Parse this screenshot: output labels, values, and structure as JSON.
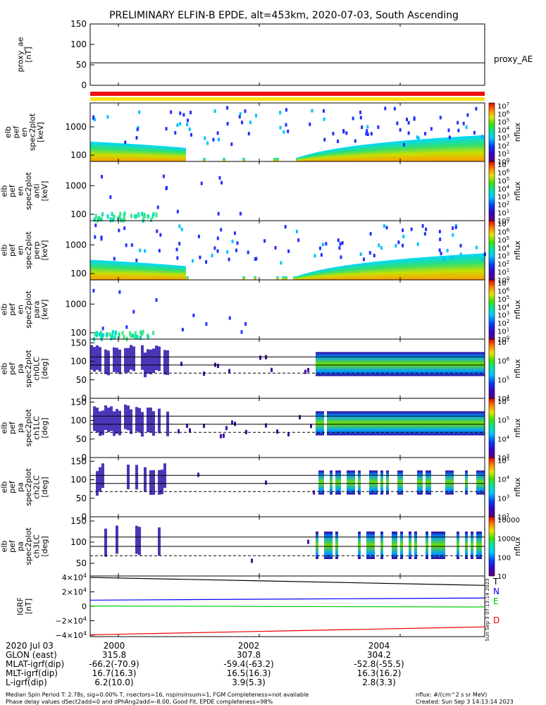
{
  "title": "PRELIMINARY ELFIN-B EPDE, alt=453km, 2020-07-03, South Ascending",
  "colors": {
    "ae_line": "#000000",
    "bar_red": "#ee1111",
    "bar_yellow": "#f5e11a",
    "grf_T": "#000000",
    "grf_N": "#0000ff",
    "grf_E": "#00cc00",
    "grf_D": "#ee0000",
    "dashed": "#000000"
  },
  "chart_data": [
    {
      "id": "proxy_ae",
      "type": "line",
      "ylabel": "proxy_ae\n[nT]",
      "yticks": [
        "150",
        "100",
        "50",
        "0"
      ],
      "ylim": [
        0,
        150
      ],
      "legend": "proxy_AE",
      "series": [
        {
          "name": "proxy_AE",
          "x": [
            1999.6,
            2005.2
          ],
          "values": [
            55,
            55
          ]
        }
      ]
    },
    {
      "id": "en_spec",
      "type": "heatmap",
      "ylabel": "elb\npef\nen\nspec2plot\n[keV]",
      "yticks": [
        "1000",
        "100"
      ],
      "ylim": [
        60,
        7000
      ],
      "yscale": "log",
      "colorbar": {
        "label": "nflux",
        "ticks": [
          "10^7",
          "10^6",
          "10^5",
          "10^4",
          "10^3",
          "10^2",
          "10^1",
          "10^0"
        ]
      }
    },
    {
      "id": "en_spec_anti",
      "type": "heatmap",
      "ylabel": "elb\npef\nen\nspec2plot\nanti\n[keV]",
      "yticks": [
        "1000",
        "100"
      ],
      "ylim": [
        60,
        7000
      ],
      "yscale": "log",
      "colorbar": {
        "label": "nflux",
        "ticks": [
          "10^7",
          "10^6",
          "10^5",
          "10^4",
          "10^3",
          "10^2",
          "10^1",
          "10^0"
        ]
      }
    },
    {
      "id": "en_spec_perp",
      "type": "heatmap",
      "ylabel": "elb\npef\nen\nspec2plot\nperp\n[keV]",
      "yticks": [
        "1000",
        "100"
      ],
      "ylim": [
        60,
        7000
      ],
      "yscale": "log",
      "colorbar": {
        "label": "nflux",
        "ticks": [
          "10^7",
          "10^6",
          "10^5",
          "10^4",
          "10^3",
          "10^2",
          "10^1",
          "10^0"
        ]
      }
    },
    {
      "id": "en_spec_para",
      "type": "heatmap",
      "ylabel": "elb\npef\nen\nspec2plot\npara\n[keV]",
      "yticks": [
        "1000",
        "100"
      ],
      "ylim": [
        60,
        7000
      ],
      "yscale": "log",
      "colorbar": {
        "label": "nflux",
        "ticks": [
          "10^7",
          "10^6",
          "10^5",
          "10^4",
          "10^3",
          "10^2",
          "10^1",
          "10^0"
        ]
      }
    },
    {
      "id": "ch0LC",
      "type": "heatmap",
      "ylabel": "elb\npef\npa\nspec2plot\nch0LC\n[deg]",
      "yticks": [
        "150",
        "100",
        "50",
        "0"
      ],
      "ylim": [
        0,
        160
      ],
      "colorbar": {
        "label": "nflux",
        "ticks": [
          "10^7",
          "10^6",
          "10^5",
          "10^4"
        ]
      }
    },
    {
      "id": "ch1LC",
      "type": "heatmap",
      "ylabel": "elb\npef\npa\nspec2plot\nch1LC\n[deg]",
      "yticks": [
        "150",
        "100",
        "50",
        "0"
      ],
      "ylim": [
        0,
        160
      ],
      "colorbar": {
        "label": "nflux",
        "ticks": [
          "10^6",
          "10^5",
          "10^4",
          "10^3"
        ]
      }
    },
    {
      "id": "ch2LC",
      "type": "heatmap",
      "ylabel": "elb\npef\npa\nspec2plot\nch2LC\n[deg]",
      "yticks": [
        "150",
        "100",
        "50",
        "0"
      ],
      "ylim": [
        0,
        160
      ],
      "colorbar": {
        "label": "nflux",
        "ticks": [
          "10^5",
          "10^4",
          "10^3",
          "10^2"
        ]
      }
    },
    {
      "id": "ch3LC",
      "type": "heatmap",
      "ylabel": "elb\npef\npa\nspec2plot\nch3LC\n[deg]",
      "yticks": [
        "150",
        "100",
        "50"
      ],
      "ylim": [
        20,
        160
      ],
      "colorbar": {
        "label": "nflux",
        "ticks": [
          "10000",
          "1000",
          "100",
          "10"
        ]
      }
    },
    {
      "id": "igrf",
      "type": "line",
      "ylabel": "IGRF\n[nT]",
      "yticks": [
        "4×10^4",
        "2×10^4",
        "0",
        "−2×10^4",
        "−4×10^4"
      ],
      "ylim": [
        -42000,
        42000
      ],
      "series": [
        {
          "name": "T",
          "x": [
            1999.6,
            2005.2
          ],
          "values": [
            40000,
            29000
          ]
        },
        {
          "name": "N",
          "x": [
            1999.6,
            2005.2
          ],
          "values": [
            8500,
            11500
          ]
        },
        {
          "name": "E",
          "x": [
            1999.6,
            2005.2
          ],
          "values": [
            400,
            -1000
          ]
        },
        {
          "name": "D",
          "x": [
            1999.6,
            2005.2
          ],
          "values": [
            -39500,
            -28500
          ]
        }
      ]
    }
  ],
  "x_axis": {
    "ticks": [
      "2000",
      "2002",
      "2004"
    ],
    "rows": [
      {
        "label": "2020 Jul 03",
        "values": [
          "2000",
          "2002",
          "2004"
        ]
      },
      {
        "label": "GLON (east)",
        "values": [
          "315.8",
          "307.8",
          "304.2"
        ]
      },
      {
        "label": "MLAT-igrf(dip)",
        "values": [
          "-66.2(-70.9)",
          "-59.4(-63.2)",
          "-52.8(-55.5)"
        ]
      },
      {
        "label": "MLT-igrf(dip)",
        "values": [
          "16.7(16.3)",
          "16.5(16.3)",
          "16.3(16.2)"
        ]
      },
      {
        "label": "L-igrf(dip)",
        "values": [
          "6.2(10.0)",
          "3.9(5.3)",
          "2.8(3.3)"
        ]
      }
    ]
  },
  "footer": {
    "line1": "Median Spin Period T: 2.78s, sig=0.00% T, nsectors=16, nspinsinsum=1, FGM Completeness=not available",
    "line2": "Phase delay values dSect2add=0 and dPhAng2add=-8.00, Good Fit, EPDE completeness=98%",
    "units": "nflux: #/(cm^2 s sr MeV)",
    "created": "Created: Sun Sep  3 14:13:14 2023"
  },
  "side_stamp": "Sun Sep  3 07:13:14 2023"
}
